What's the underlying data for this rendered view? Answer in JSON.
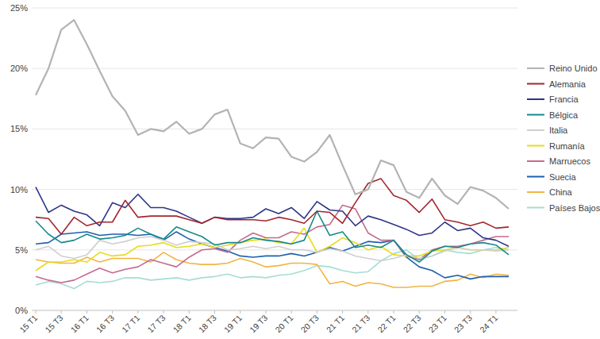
{
  "chart_data": {
    "type": "line",
    "categories": [
      "15 T1",
      null,
      "15 T3",
      null,
      "16 T1",
      null,
      "16 T3",
      null,
      "17 T1",
      null,
      "17 T3",
      null,
      "18 T1",
      null,
      "18 T3",
      null,
      "19 T1",
      null,
      "19 T3",
      null,
      "20 T1",
      null,
      "20 T3",
      null,
      "21 T1",
      null,
      "21 T3",
      null,
      "22 T1",
      null,
      "22 T3",
      null,
      "23 T1",
      null,
      "23 T3",
      null,
      "24 T1",
      null
    ],
    "ylim": [
      0,
      25
    ],
    "yticks": [
      {
        "value": 0,
        "label": "0%"
      },
      {
        "value": 5,
        "label": "5%"
      },
      {
        "value": 10,
        "label": "10%"
      },
      {
        "value": 15,
        "label": "15%"
      },
      {
        "value": 20,
        "label": "20%"
      },
      {
        "value": 25,
        "label": "25%"
      }
    ],
    "grid": true,
    "legend": "right",
    "series": [
      {
        "name": "Reino Unido",
        "color": "#b3b3b3",
        "values": [
          17.8,
          20,
          23.2,
          24,
          22,
          19.8,
          17.7,
          16.5,
          14.5,
          15,
          14.8,
          15.6,
          14.6,
          15,
          16.2,
          16.6,
          13.8,
          13.4,
          14.3,
          14.2,
          12.7,
          12.3,
          13.1,
          14.5,
          12,
          9.6,
          10,
          12.4,
          12,
          9.8,
          9.3,
          10.9,
          9.5,
          8.8,
          10.2,
          9.9,
          9.3,
          8.4
        ]
      },
      {
        "name": "Alemania",
        "color": "#a3262f",
        "values": [
          7.7,
          7.6,
          6.3,
          7.7,
          7.0,
          7.3,
          7.3,
          9.1,
          7.7,
          7.8,
          7.8,
          7.8,
          7.5,
          7.2,
          7.7,
          7.5,
          7.5,
          7.5,
          7.4,
          7.7,
          7.5,
          7.2,
          8.2,
          8.1,
          7.2,
          8.9,
          10.5,
          10.9,
          9.5,
          9.1,
          8.1,
          9.2,
          7.5,
          7.3,
          7.0,
          7.3,
          6.8,
          6.9
        ]
      },
      {
        "name": "Francia",
        "color": "#2e3587",
        "values": [
          10.2,
          8.1,
          8.7,
          8.2,
          7.9,
          7.0,
          8.9,
          8.5,
          9.6,
          8.5,
          8.5,
          8.2,
          7.7,
          7.2,
          7.7,
          7.6,
          7.6,
          7.7,
          8.4,
          8.0,
          8.5,
          7.6,
          9.0,
          8.3,
          8.2,
          7.0,
          7.8,
          7.5,
          7.1,
          6.7,
          6.2,
          6.4,
          7.3,
          6.6,
          6.8,
          6.0,
          5.8,
          5.3
        ]
      },
      {
        "name": "Bélgica",
        "color": "#168a8a",
        "values": [
          7.4,
          6.3,
          5.6,
          5.8,
          6.3,
          5.9,
          6.0,
          6.2,
          6.8,
          6.3,
          5.9,
          6.9,
          6.5,
          6.1,
          5.4,
          5.6,
          5.6,
          6.0,
          5.8,
          5.7,
          5.5,
          5.8,
          8.2,
          6.2,
          6.5,
          5.2,
          5.4,
          5.2,
          5.8,
          4.6,
          4.0,
          4.9,
          5.3,
          5.2,
          5.5,
          5.6,
          5.4,
          4.6
        ]
      },
      {
        "name": "Italia",
        "color": "#cfcfcf",
        "values": [
          5.0,
          5.3,
          4.5,
          4.3,
          4.6,
          5.8,
          5.5,
          5.7,
          6.0,
          6.1,
          5.8,
          5.4,
          5.7,
          5.6,
          5.5,
          5.0,
          5.1,
          5.3,
          5.1,
          5.3,
          5.0,
          5.0,
          4.8,
          5.1,
          4.9,
          4.5,
          4.3,
          4.1,
          4.3,
          4.6,
          4.3,
          4.5,
          4.9,
          5.2,
          5.0,
          5.0,
          4.9,
          5.0
        ]
      },
      {
        "name": "Rumanía",
        "color": "#e6dc1a",
        "values": [
          3.3,
          4.0,
          4.0,
          4.2,
          4.0,
          4.8,
          4.5,
          4.6,
          5.3,
          5.4,
          5.6,
          5.2,
          5.3,
          5.5,
          5.2,
          5.4,
          5.6,
          5.8,
          5.9,
          5.6,
          5.5,
          6.8,
          4.8,
          5.3,
          6.0,
          5.6,
          5.0,
          5.3,
          4.6,
          4.5,
          4.5,
          4.9,
          5.0,
          5.2,
          5.0,
          5.0,
          5.0,
          5.2
        ]
      },
      {
        "name": "Marruecos",
        "color": "#c46a8e",
        "values": [
          2.8,
          2.5,
          2.3,
          2.5,
          3.0,
          3.5,
          3.1,
          3.4,
          3.6,
          4.2,
          3.9,
          3.6,
          4.4,
          5.0,
          5.1,
          4.8,
          5.8,
          6.4,
          6.0,
          6.0,
          6.5,
          6.3,
          6.9,
          7.1,
          8.7,
          8.4,
          6.4,
          5.8,
          5.8,
          4.5,
          4.2,
          5.0,
          5.3,
          5.3,
          5.5,
          5.8,
          6.1,
          6.1
        ]
      },
      {
        "name": "Suecia",
        "color": "#1f5fae",
        "values": [
          5.5,
          5.6,
          6.3,
          6.4,
          6.5,
          6.2,
          6.3,
          6.3,
          6.2,
          6.3,
          5.8,
          6.5,
          5.9,
          5.5,
          5.2,
          4.9,
          4.5,
          4.4,
          4.5,
          4.5,
          4.7,
          4.5,
          4.8,
          5.2,
          4.9,
          5.3,
          5.7,
          5.6,
          5.8,
          4.4,
          3.6,
          3.3,
          2.7,
          2.9,
          2.6,
          2.8,
          2.8,
          2.8
        ]
      },
      {
        "name": "China",
        "color": "#f2b445",
        "values": [
          4.2,
          4.0,
          3.9,
          3.9,
          4.4,
          4.0,
          4.3,
          4.3,
          4.3,
          4.0,
          4.8,
          4.2,
          3.9,
          3.8,
          3.8,
          3.9,
          4.3,
          4.0,
          3.6,
          3.7,
          3.9,
          3.9,
          3.8,
          2.2,
          2.4,
          2.0,
          2.3,
          2.2,
          1.9,
          1.9,
          2.0,
          2.0,
          2.4,
          2.5,
          3.0,
          2.7,
          3.0,
          2.9
        ]
      },
      {
        "name": "Países Bajos",
        "color": "#a6ddd4",
        "values": [
          2.1,
          2.4,
          2.2,
          1.8,
          2.4,
          2.3,
          2.4,
          2.7,
          2.7,
          2.5,
          2.6,
          2.7,
          2.5,
          2.7,
          2.8,
          3.0,
          2.7,
          2.8,
          2.7,
          2.9,
          3.0,
          3.3,
          3.7,
          3.6,
          3.3,
          3.1,
          3.2,
          4.1,
          4.7,
          5.0,
          4.2,
          4.5,
          5.0,
          4.8,
          4.7,
          5.0,
          5.2,
          5.0
        ]
      }
    ]
  }
}
